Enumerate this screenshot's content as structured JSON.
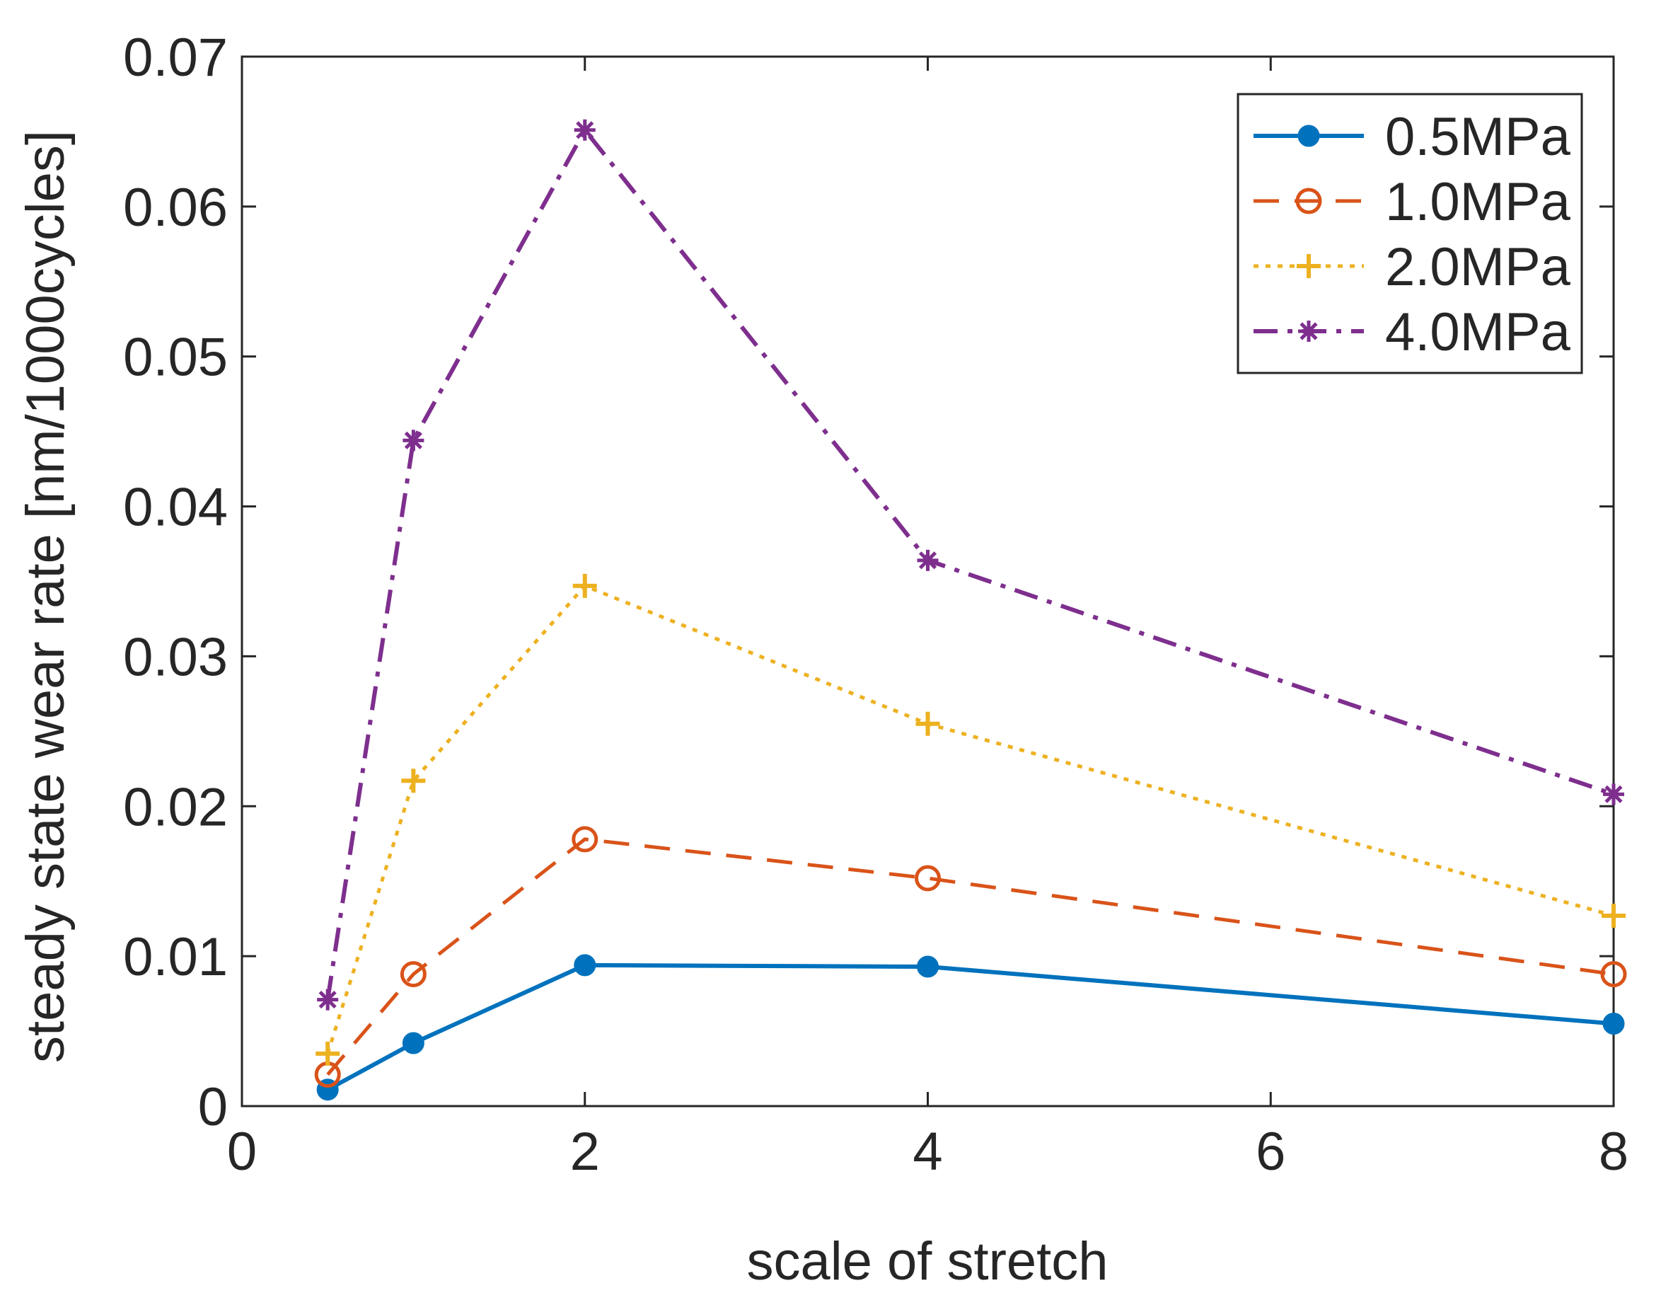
{
  "chart_data": {
    "type": "line",
    "title": "",
    "xlabel": "scale of stretch",
    "ylabel": "steady state wear rate [nm/1000cycles]",
    "xlim": [
      0,
      8
    ],
    "ylim": [
      0,
      0.07
    ],
    "xticks": [
      0,
      2,
      4,
      6,
      8
    ],
    "xtick_labels": [
      "0",
      "2",
      "4",
      "6",
      "8"
    ],
    "yticks": [
      0,
      0.01,
      0.02,
      0.03,
      0.04,
      0.05,
      0.06,
      0.07
    ],
    "ytick_labels": [
      "0",
      "0.01",
      "0.02",
      "0.03",
      "0.04",
      "0.05",
      "0.06",
      "0.07"
    ],
    "x": [
      0.5,
      1,
      2,
      4,
      8
    ],
    "legend_position": "top-right",
    "grid": false,
    "series": [
      {
        "name": "0.5MPa",
        "values": [
          0.0011,
          0.0042,
          0.0094,
          0.0093,
          0.0055
        ],
        "color": "#0072BD",
        "dash": "solid",
        "marker": "filled-circle"
      },
      {
        "name": "1.0MPa",
        "values": [
          0.0021,
          0.0088,
          0.0178,
          0.0152,
          0.0088
        ],
        "color": "#D95319",
        "dash": "dashed",
        "marker": "open-circle"
      },
      {
        "name": "2.0MPa",
        "values": [
          0.0035,
          0.0217,
          0.0347,
          0.0255,
          0.0127
        ],
        "color": "#EDB120",
        "dash": "dotted",
        "marker": "plus"
      },
      {
        "name": "4.0MPa",
        "values": [
          0.0071,
          0.0444,
          0.0651,
          0.0364,
          0.0208
        ],
        "color": "#7E2F8E",
        "dash": "dashdot",
        "marker": "asterisk"
      }
    ]
  }
}
